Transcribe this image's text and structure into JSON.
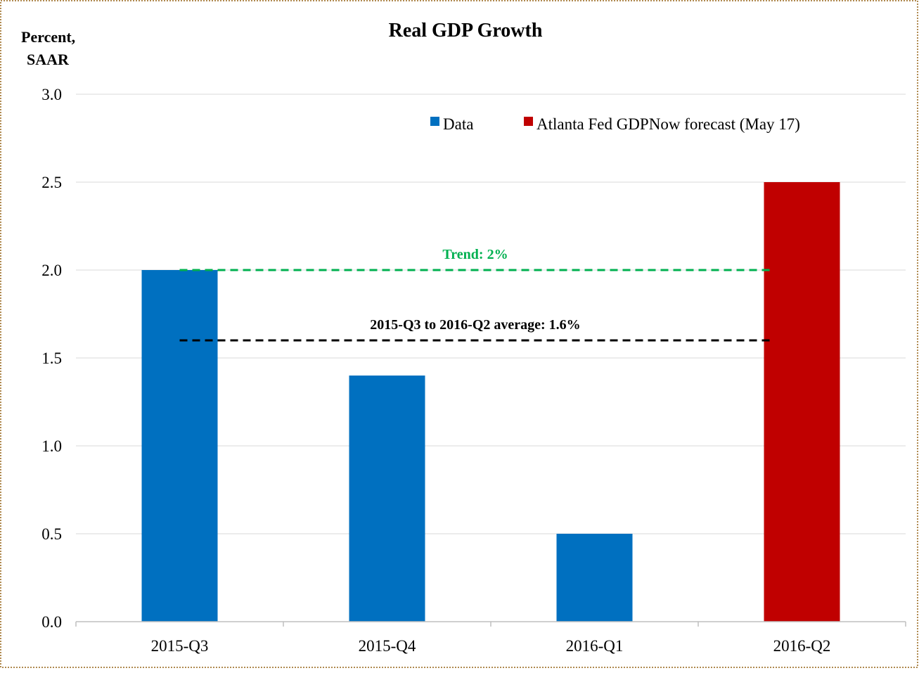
{
  "chart_data": {
    "type": "bar",
    "title": "Real GDP Growth",
    "ylabel_lines": [
      "Percent,",
      "SAAR"
    ],
    "categories": [
      "2015-Q3",
      "2015-Q4",
      "2016-Q1",
      "2016-Q2"
    ],
    "series": [
      {
        "name": "Data",
        "color": "#0070c0",
        "values": [
          2.0,
          1.4,
          0.5,
          null
        ]
      },
      {
        "name": "Atlanta Fed GDPNow forecast (May 17)",
        "color": "#c00000",
        "values": [
          null,
          null,
          null,
          2.5
        ]
      }
    ],
    "ylim": [
      0,
      3.0
    ],
    "yticks": [
      "0.0",
      "0.5",
      "1.0",
      "1.5",
      "2.0",
      "2.5",
      "3.0"
    ],
    "ytick_values": [
      0,
      0.5,
      1.0,
      1.5,
      2.0,
      2.5,
      3.0
    ],
    "grid": true,
    "legend_position": "top-right",
    "reference_lines": [
      {
        "label": "Trend: 2%",
        "value": 2.0,
        "color": "#00b050",
        "style": "dashed"
      },
      {
        "label": "2015-Q3 to 2016-Q2 average: 1.6%",
        "value": 1.6,
        "color": "#000000",
        "style": "dashed"
      }
    ]
  }
}
